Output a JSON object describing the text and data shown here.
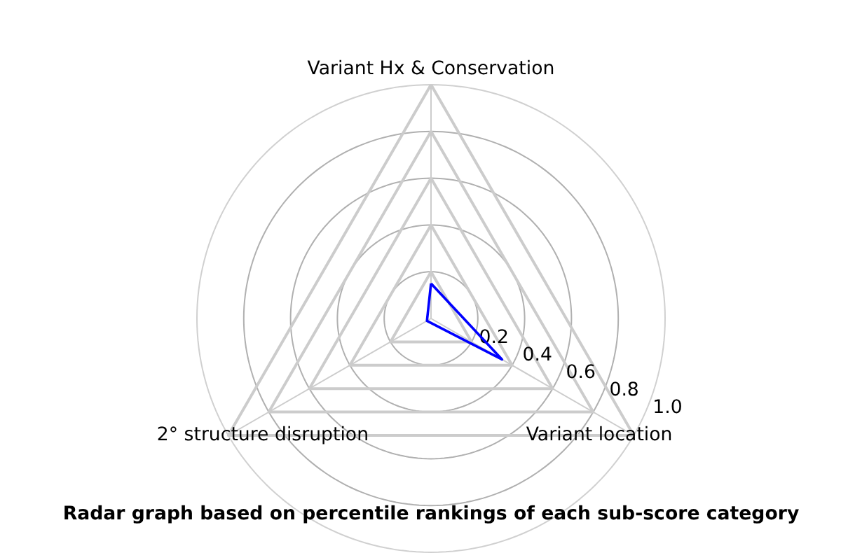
{
  "chart_data": {
    "type": "radar",
    "title": "Radar graph based on percentile rankings of each sub-score category",
    "categories": [
      "Variant Hx & Conservation",
      "Variant location",
      "2° structure disruption"
    ],
    "series": [
      {
        "color": "#0000ff",
        "values": [
          0.15,
          0.35,
          0.02
        ]
      }
    ],
    "ylim": [
      0,
      1
    ],
    "yticks": [
      0.2,
      0.4,
      0.6,
      0.8,
      {
        "value": 1,
        "label": "1.0"
      }
    ],
    "grid": true
  }
}
